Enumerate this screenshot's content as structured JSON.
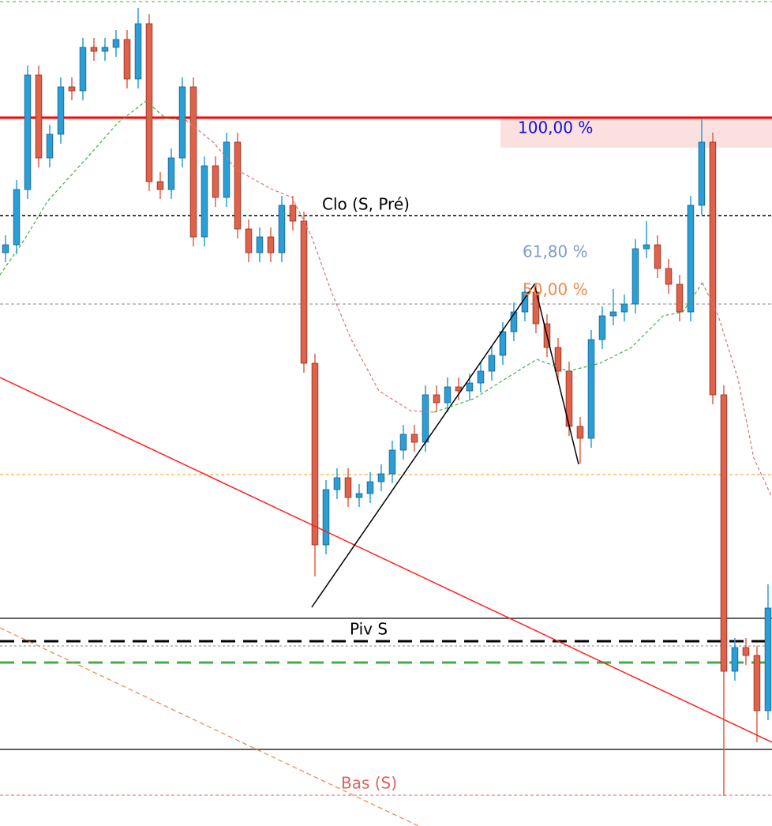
{
  "chart_data": {
    "type": "candlestick",
    "xlim": [
      -0.5,
      69.36
    ],
    "ylim": [
      0,
      1046
    ],
    "up_color": "#2a9fd6",
    "down_color": "#e0624a",
    "open": [
      726,
      736,
      806,
      951,
      846,
      876,
      936,
      931,
      986,
      981,
      986,
      996,
      946,
      1016,
      816,
      806,
      846,
      936,
      746,
      836,
      796,
      866,
      756,
      726,
      746,
      726,
      786,
      766,
      586,
      356,
      426,
      441,
      416,
      421,
      436,
      446,
      476,
      496,
      486,
      546,
      536,
      556,
      551,
      561,
      576,
      596,
      626,
      651,
      676,
      636,
      606,
      576,
      506,
      491,
      616,
      646,
      651,
      661,
      731,
      736,
      706,
      686,
      651,
      786,
      866,
      546,
      196,
      226,
      216,
      146
    ],
    "high": [
      748,
      818,
      963,
      963,
      888,
      948,
      948,
      998,
      998,
      998,
      1008,
      1008,
      1036,
      1028,
      828,
      858,
      948,
      948,
      848,
      848,
      878,
      878,
      768,
      758,
      758,
      798,
      798,
      778,
      598,
      438,
      453,
      453,
      433,
      448,
      458,
      488,
      508,
      508,
      558,
      558,
      568,
      568,
      573,
      588,
      608,
      638,
      663,
      688,
      688,
      648,
      618,
      588,
      518,
      628,
      658,
      680,
      673,
      743,
      766,
      748,
      718,
      698,
      798,
      896,
      878,
      558,
      238,
      238,
      228,
      306
    ],
    "low": [
      714,
      724,
      794,
      834,
      834,
      864,
      919,
      919,
      969,
      969,
      974,
      934,
      934,
      804,
      794,
      794,
      834,
      734,
      734,
      784,
      784,
      744,
      714,
      714,
      714,
      714,
      754,
      574,
      316,
      344,
      414,
      404,
      404,
      409,
      424,
      434,
      464,
      474,
      474,
      524,
      524,
      539,
      539,
      549,
      564,
      584,
      614,
      639,
      624,
      594,
      564,
      494,
      459,
      479,
      604,
      634,
      639,
      649,
      719,
      694,
      674,
      639,
      639,
      774,
      534,
      38,
      184,
      204,
      106,
      134
    ],
    "close": [
      736,
      806,
      951,
      846,
      876,
      936,
      931,
      986,
      981,
      986,
      996,
      946,
      1016,
      816,
      806,
      846,
      936,
      746,
      836,
      796,
      866,
      756,
      726,
      746,
      726,
      786,
      766,
      586,
      356,
      426,
      441,
      416,
      421,
      436,
      446,
      476,
      496,
      486,
      546,
      536,
      556,
      551,
      561,
      576,
      596,
      626,
      651,
      676,
      636,
      606,
      576,
      506,
      491,
      616,
      646,
      651,
      661,
      731,
      736,
      706,
      686,
      651,
      786,
      866,
      546,
      196,
      226,
      216,
      146,
      276
    ],
    "levels": [
      {
        "value": 1044,
        "color": "#3cb043",
        "dash": "4,4",
        "width": 1
      },
      {
        "value": 897,
        "color": "#ff0000",
        "dash": "none",
        "width": 3
      },
      {
        "value": 773,
        "color": "#000000",
        "dash": "4,3",
        "width": 1.5
      },
      {
        "value": 661,
        "color": "#888888",
        "dash": "4,3",
        "width": 1
      },
      {
        "value": 445,
        "color": "#e8a020",
        "dash": "4,3",
        "width": 1
      },
      {
        "value": 263,
        "color": "#000000",
        "dash": "none",
        "width": 1.2
      },
      {
        "value": 234,
        "color": "#000000",
        "dash": "18,10",
        "width": 3
      },
      {
        "value": 228,
        "color": "#888888",
        "dash": "3,3",
        "width": 1
      },
      {
        "value": 207,
        "color": "#3cb043",
        "dash": "18,10",
        "width": 3
      },
      {
        "value": 97,
        "color": "#000000",
        "dash": "none",
        "width": 1.2
      },
      {
        "value": 39,
        "color": "#e06060",
        "dash": "4,3",
        "width": 1
      }
    ],
    "lines": [
      {
        "color": "#ff2020",
        "dash": "none",
        "width": 1.5,
        "x": [
          -0.5,
          69.36
        ],
        "values": [
          568,
          106
        ]
      },
      {
        "color": "#f08050",
        "dash": "6,4",
        "width": 1.2,
        "x": [
          -0.5,
          37.36
        ],
        "values": [
          251,
          0
        ]
      },
      {
        "color": "#000000",
        "dash": "none",
        "width": 1.5,
        "x": [
          27.71,
          47.86,
          51.86
        ],
        "values": [
          277,
          686,
          458
        ]
      },
      {
        "color": "#3cb043",
        "dash": "4,3",
        "width": 1.2,
        "x": [
          -0.5,
          1.64,
          3.79,
          7.36,
          10.21,
          12.71,
          14.5,
          16.29
        ],
        "values": [
          698,
          741,
          791,
          846,
          891,
          918,
          896,
          894
        ]
      },
      {
        "color": "#e07070",
        "dash": "4,3",
        "width": 1.2,
        "x": [
          16.29,
          18.79,
          20.93,
          24.14,
          25.93,
          27.71,
          29.5,
          31.29,
          33.79,
          36.64,
          38.79
        ],
        "values": [
          894,
          866,
          831,
          806,
          796,
          746,
          676,
          616,
          551,
          526,
          524
        ]
      },
      {
        "color": "#3cb043",
        "dash": "4,3",
        "width": 1.2,
        "x": [
          38.79,
          42.36,
          45.21,
          48.07,
          50.93,
          53.79,
          56.64,
          59.5,
          61.29,
          63.07
        ],
        "values": [
          524,
          541,
          566,
          591,
          576,
          586,
          606,
          646,
          651,
          688
        ]
      },
      {
        "color": "#e07070",
        "dash": "4,3",
        "width": 1.2,
        "x": [
          63.07,
          64.5,
          66.29,
          67.71,
          69.36
        ],
        "values": [
          688,
          646,
          566,
          466,
          416
        ]
      }
    ],
    "annotations": {
      "fib100": "100,00 %",
      "fib618": "61,80 %",
      "fib50": "50,00 %",
      "close": "Clo (S, Pré)",
      "pivot": "Piv S",
      "low": "Bas (S)"
    }
  }
}
